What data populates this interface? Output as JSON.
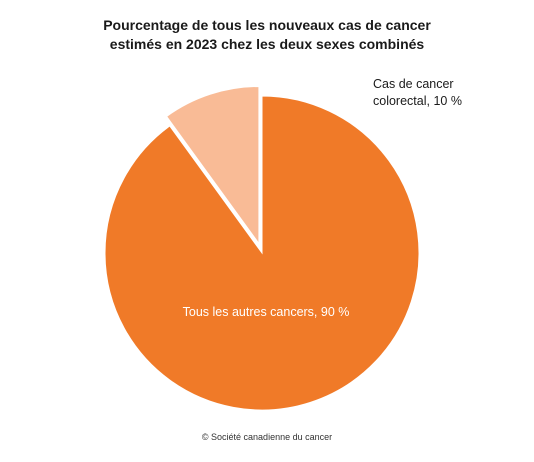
{
  "chart_data": {
    "type": "pie",
    "title_lines": [
      "Pourcentage de tous les nouveaux cas de cancer",
      "estimés en 2023 chez les deux sexes combinés"
    ],
    "slices": [
      {
        "label_lines": [
          "Tous les autres cancers, 90 %"
        ],
        "value": 90,
        "color": "#f07a28",
        "label_color": "#ffffff",
        "exploded": false
      },
      {
        "label_lines": [
          "Cas de cancer",
          "colorectal, 10 %"
        ],
        "value": 10,
        "color": "#f9bb96",
        "label_color": "#1a1a1a",
        "exploded": true
      }
    ],
    "start_angle_deg": 0,
    "direction": "clockwise"
  },
  "footer": {
    "credit": "© Société canadienne du cancer"
  }
}
